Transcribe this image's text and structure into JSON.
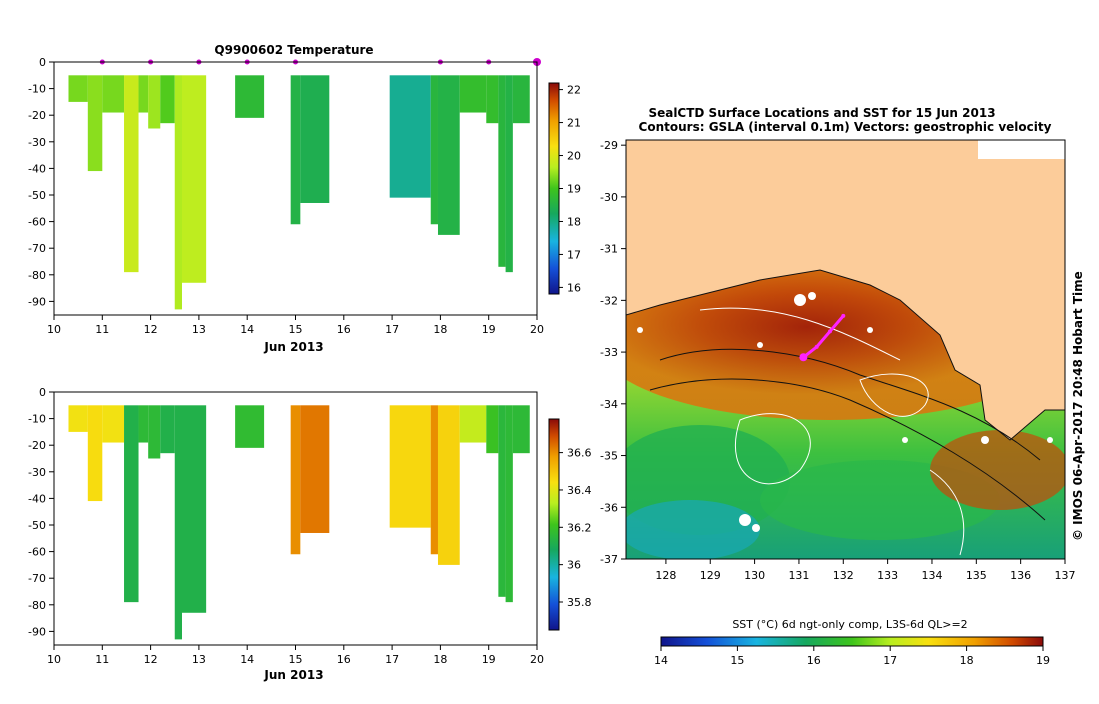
{
  "left_top": {
    "title": "Q9900602  Temperature",
    "xlabel": "Jun 2013",
    "x_ticks": [
      "10",
      "11",
      "12",
      "13",
      "14",
      "15",
      "16",
      "17",
      "18",
      "19",
      "20"
    ],
    "y_ticks": [
      "0",
      "-10",
      "-20",
      "-30",
      "-40",
      "-50",
      "-60",
      "-70",
      "-80",
      "-90"
    ],
    "colorbar_ticks": [
      "22",
      "21",
      "20",
      "19",
      "18",
      "17",
      "16"
    ]
  },
  "left_bottom": {
    "xlabel": "Jun 2013",
    "x_ticks": [
      "10",
      "11",
      "12",
      "13",
      "14",
      "15",
      "16",
      "17",
      "18",
      "19",
      "20"
    ],
    "y_ticks": [
      "0",
      "-10",
      "-20",
      "-30",
      "-40",
      "-50",
      "-60",
      "-70",
      "-80",
      "-90"
    ],
    "colorbar_ticks": [
      "36.6",
      "36.4",
      "36.2",
      "36",
      "35.8"
    ]
  },
  "map": {
    "title_line1": "SealCTD Surface Locations and SST for 15 Jun 2013",
    "title_line2": "Contours: GSLA (interval 0.1m) Vectors: geostrophic velocity",
    "lon_ticks": [
      "128",
      "129",
      "130",
      "131",
      "132",
      "133",
      "134",
      "135",
      "136",
      "137"
    ],
    "lat_ticks": [
      "-29",
      "-30",
      "-31",
      "-32",
      "-33",
      "-34",
      "-35",
      "-36",
      "-37"
    ],
    "side_label": "© IMOS 06-Apr-2017 20:48 Hobart Time",
    "colorbar_title": "SST (°C) 6d ngt-only comp, L3S-6d QL>=2",
    "colorbar_ticks": [
      "14",
      "15",
      "16",
      "17",
      "18",
      "19"
    ]
  },
  "chart_data": [
    {
      "type": "bar",
      "title": "Q9900602  Temperature",
      "xlabel": "Jun 2013",
      "ylabel": "",
      "xlim": [
        10,
        20
      ],
      "ylim": [
        -95,
        0
      ],
      "colorbar_range": [
        15.8,
        22.2
      ],
      "profile_dates": [
        11.0,
        12.0,
        13.0,
        14.0,
        15.0,
        18.0,
        19.0,
        20.0
      ],
      "profiles": [
        {
          "x0": 10.3,
          "x1": 10.7,
          "depth": -15,
          "value": 19.3
        },
        {
          "x0": 10.7,
          "x1": 11.0,
          "depth": -41,
          "value": 19.4
        },
        {
          "x0": 11.0,
          "x1": 11.45,
          "depth": -19,
          "value": 19.3
        },
        {
          "x0": 11.45,
          "x1": 11.75,
          "depth": -79,
          "value": 19.8
        },
        {
          "x0": 11.75,
          "x1": 11.95,
          "depth": -19,
          "value": 19.3
        },
        {
          "x0": 11.95,
          "x1": 12.2,
          "depth": -25,
          "value": 19.5
        },
        {
          "x0": 12.2,
          "x1": 12.5,
          "depth": -23,
          "value": 19.1
        },
        {
          "x0": 12.5,
          "x1": 12.65,
          "depth": -93,
          "value": 19.6
        },
        {
          "x0": 12.65,
          "x1": 13.15,
          "depth": -83,
          "value": 19.7
        },
        {
          "x0": 13.75,
          "x1": 14.35,
          "depth": -21,
          "value": 18.7
        },
        {
          "x0": 14.9,
          "x1": 15.1,
          "depth": -61,
          "value": 18.5
        },
        {
          "x0": 15.1,
          "x1": 15.7,
          "depth": -53,
          "value": 18.4
        },
        {
          "x0": 16.95,
          "x1": 17.8,
          "depth": -51,
          "value": 17.9
        },
        {
          "x0": 17.8,
          "x1": 17.95,
          "depth": -61,
          "value": 18.6
        },
        {
          "x0": 17.95,
          "x1": 18.4,
          "depth": -65,
          "value": 18.5
        },
        {
          "x0": 18.4,
          "x1": 18.95,
          "depth": -19,
          "value": 18.8
        },
        {
          "x0": 18.95,
          "x1": 19.2,
          "depth": -23,
          "value": 18.8
        },
        {
          "x0": 19.2,
          "x1": 19.35,
          "depth": -77,
          "value": 18.6
        },
        {
          "x0": 19.35,
          "x1": 19.5,
          "depth": -79,
          "value": 18.5
        },
        {
          "x0": 19.5,
          "x1": 19.85,
          "depth": -23,
          "value": 18.6
        }
      ]
    },
    {
      "type": "bar",
      "title": "",
      "xlabel": "Jun 2013",
      "ylabel": "",
      "xlim": [
        10,
        20
      ],
      "ylim": [
        -95,
        0
      ],
      "colorbar_range": [
        35.65,
        36.78
      ],
      "profiles": [
        {
          "x0": 10.3,
          "x1": 10.7,
          "depth": -15,
          "value": 36.43
        },
        {
          "x0": 10.7,
          "x1": 11.0,
          "depth": -41,
          "value": 36.45
        },
        {
          "x0": 11.0,
          "x1": 11.45,
          "depth": -19,
          "value": 36.43
        },
        {
          "x0": 11.45,
          "x1": 11.75,
          "depth": -79,
          "value": 36.12
        },
        {
          "x0": 11.75,
          "x1": 11.95,
          "depth": -19,
          "value": 36.16
        },
        {
          "x0": 11.95,
          "x1": 12.2,
          "depth": -25,
          "value": 36.16
        },
        {
          "x0": 12.2,
          "x1": 12.5,
          "depth": -23,
          "value": 36.12
        },
        {
          "x0": 12.5,
          "x1": 12.65,
          "depth": -93,
          "value": 36.12
        },
        {
          "x0": 12.65,
          "x1": 13.15,
          "depth": -83,
          "value": 36.12
        },
        {
          "x0": 13.75,
          "x1": 14.35,
          "depth": -21,
          "value": 36.17
        },
        {
          "x0": 14.9,
          "x1": 15.1,
          "depth": -61,
          "value": 36.6
        },
        {
          "x0": 15.1,
          "x1": 15.7,
          "depth": -53,
          "value": 36.63
        },
        {
          "x0": 16.95,
          "x1": 17.8,
          "depth": -51,
          "value": 36.46
        },
        {
          "x0": 17.8,
          "x1": 17.95,
          "depth": -61,
          "value": 36.6
        },
        {
          "x0": 17.95,
          "x1": 18.4,
          "depth": -65,
          "value": 36.47
        },
        {
          "x0": 18.4,
          "x1": 18.95,
          "depth": -19,
          "value": 36.35
        },
        {
          "x0": 18.95,
          "x1": 19.2,
          "depth": -23,
          "value": 36.2
        },
        {
          "x0": 19.2,
          "x1": 19.35,
          "depth": -77,
          "value": 36.15
        },
        {
          "x0": 19.35,
          "x1": 19.5,
          "depth": -79,
          "value": 36.16
        },
        {
          "x0": 19.5,
          "x1": 19.85,
          "depth": -23,
          "value": 36.16
        }
      ]
    },
    {
      "type": "heatmap",
      "title": "SealCTD Surface Locations and SST for 15 Jun 2013",
      "xlabel": "",
      "ylabel": "",
      "xlim": [
        127.1,
        137.0
      ],
      "ylim": [
        -37.0,
        -28.9
      ],
      "colorbar_range": [
        14,
        19
      ],
      "seal_track": [
        [
          131.1,
          -33.1
        ],
        [
          131.4,
          -32.9
        ],
        [
          131.7,
          -32.6
        ],
        [
          132.0,
          -32.3
        ]
      ]
    }
  ]
}
